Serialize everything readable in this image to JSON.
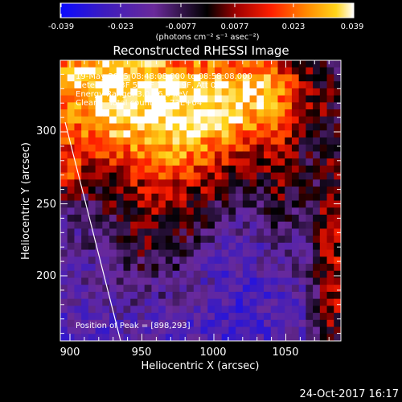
{
  "colorbar": {
    "tick_labels": [
      "-0.039",
      "-0.023",
      "-0.0077",
      "0.0077",
      "0.023",
      "0.039"
    ],
    "units_label": "(photons cm⁻² s⁻¹ asec⁻²)",
    "colors": [
      "#0a0aff",
      "#3d1cbf",
      "#6a2a9a",
      "#000000",
      "#a00000",
      "#ff2000",
      "#ff8a00",
      "#ffd41a",
      "#ffffff"
    ]
  },
  "image_title": "Reconstructed RHESSI Image",
  "annotation": {
    "time_range": "19-May-2015 08:48:08.000 to 08:58:08.000",
    "detectors": "Detectors: 3F 5F 6F 7F 8F 9F, Att 0",
    "energy": "Energy Range: 3.0 - 6.0 keV",
    "method": "Clean    Total counts: 4.73E+04"
  },
  "peak_label": "Position of Peak = [898,293]",
  "x_axis": {
    "label": "Heliocentric X (arcsec)",
    "tick_labels": [
      "900",
      "950",
      "1000",
      "1050"
    ]
  },
  "y_axis": {
    "label": "Heliocentric Y (arcsec)",
    "tick_labels": [
      "200",
      "250",
      "300"
    ]
  },
  "footer_timestamp": "24-Oct-2017 16:17"
}
